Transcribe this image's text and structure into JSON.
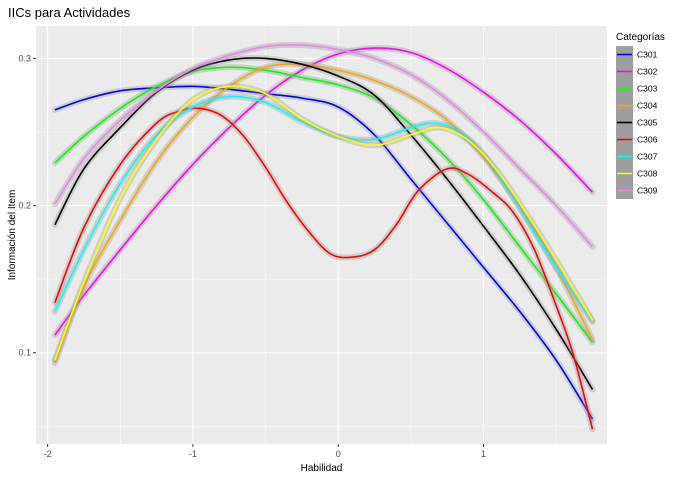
{
  "chart_data": {
    "type": "line",
    "title": "IICs para Actividades",
    "xlabel": "Habilidad",
    "ylabel": "Información del Item",
    "xlim": [
      -2.08,
      1.85
    ],
    "ylim": [
      0.038,
      0.322
    ],
    "x_ticks": [
      -2,
      -1,
      0,
      1
    ],
    "x_tick_labels": [
      "-2",
      "-1",
      "0",
      "1"
    ],
    "y_ticks": [
      0.1,
      0.2,
      0.3
    ],
    "y_tick_labels": [
      "0.1",
      "0.2",
      "0.3"
    ],
    "grid": true,
    "legend": {
      "title": "Categorías",
      "position": "right"
    },
    "series": [
      {
        "name": "C301",
        "color": "#0000FF",
        "x": [
          -1.95,
          -1.75,
          -1.5,
          -1.25,
          -1.0,
          -0.75,
          -0.5,
          -0.25,
          0.0,
          0.25,
          0.5,
          0.75,
          1.0,
          1.25,
          1.5,
          1.75
        ],
        "y": [
          0.265,
          0.272,
          0.278,
          0.28,
          0.281,
          0.279,
          0.276,
          0.273,
          0.267,
          0.248,
          0.218,
          0.188,
          0.158,
          0.128,
          0.095,
          0.055
        ]
      },
      {
        "name": "C302",
        "color": "#FF00FF",
        "x": [
          -1.95,
          -1.75,
          -1.5,
          -1.25,
          -1.0,
          -0.75,
          -0.5,
          -0.25,
          0.0,
          0.25,
          0.5,
          0.75,
          1.0,
          1.25,
          1.5,
          1.75
        ],
        "y": [
          0.112,
          0.139,
          0.17,
          0.2,
          0.228,
          0.253,
          0.275,
          0.292,
          0.303,
          0.307,
          0.304,
          0.293,
          0.277,
          0.258,
          0.235,
          0.209
        ]
      },
      {
        "name": "C303",
        "color": "#00FF00",
        "x": [
          -1.95,
          -1.75,
          -1.5,
          -1.25,
          -1.0,
          -0.75,
          -0.5,
          -0.25,
          0.0,
          0.25,
          0.5,
          0.75,
          1.0,
          1.25,
          1.5,
          1.75
        ],
        "y": [
          0.229,
          0.247,
          0.266,
          0.281,
          0.291,
          0.294,
          0.292,
          0.287,
          0.282,
          0.273,
          0.255,
          0.232,
          0.204,
          0.172,
          0.14,
          0.107
        ]
      },
      {
        "name": "C304",
        "color": "#FFA500",
        "x": [
          -1.95,
          -1.75,
          -1.5,
          -1.25,
          -1.0,
          -0.75,
          -0.5,
          -0.25,
          0.0,
          0.25,
          0.5,
          0.75,
          1.0,
          1.25,
          1.5,
          1.75
        ],
        "y": [
          0.093,
          0.145,
          0.19,
          0.23,
          0.26,
          0.281,
          0.294,
          0.296,
          0.292,
          0.285,
          0.274,
          0.258,
          0.233,
          0.199,
          0.158,
          0.109
        ]
      },
      {
        "name": "C305",
        "color": "#000000",
        "x": [
          -1.95,
          -1.75,
          -1.5,
          -1.25,
          -1.0,
          -0.75,
          -0.5,
          -0.25,
          0.0,
          0.25,
          0.5,
          0.75,
          1.0,
          1.25,
          1.5,
          1.75
        ],
        "y": [
          0.187,
          0.225,
          0.253,
          0.277,
          0.292,
          0.299,
          0.3,
          0.296,
          0.288,
          0.275,
          0.248,
          0.218,
          0.186,
          0.153,
          0.116,
          0.075
        ]
      },
      {
        "name": "C306",
        "color": "#FF0000",
        "x": [
          -1.95,
          -1.75,
          -1.5,
          -1.25,
          -1.1,
          -0.95,
          -0.8,
          -0.65,
          -0.5,
          -0.35,
          -0.2,
          -0.05,
          0.1,
          0.25,
          0.4,
          0.55,
          0.75,
          0.9,
          1.05,
          1.2,
          1.35,
          1.5,
          1.62,
          1.75
        ],
        "y": [
          0.134,
          0.185,
          0.228,
          0.256,
          0.264,
          0.266,
          0.261,
          0.247,
          0.226,
          0.202,
          0.182,
          0.167,
          0.165,
          0.17,
          0.187,
          0.21,
          0.225,
          0.221,
          0.21,
          0.196,
          0.17,
          0.132,
          0.098,
          0.048
        ]
      },
      {
        "name": "C307",
        "color": "#00FFFF",
        "x": [
          -1.95,
          -1.75,
          -1.5,
          -1.25,
          -1.0,
          -0.75,
          -0.5,
          -0.25,
          0.0,
          0.25,
          0.5,
          0.65,
          0.8,
          1.0,
          1.25,
          1.5,
          1.75
        ],
        "y": [
          0.128,
          0.17,
          0.215,
          0.248,
          0.267,
          0.274,
          0.27,
          0.257,
          0.247,
          0.245,
          0.253,
          0.256,
          0.252,
          0.235,
          0.198,
          0.158,
          0.121
        ]
      },
      {
        "name": "C308",
        "color": "#FFFF00",
        "x": [
          -1.95,
          -1.75,
          -1.5,
          -1.25,
          -1.0,
          -0.75,
          -0.5,
          -0.25,
          0.0,
          0.25,
          0.5,
          0.7,
          0.9,
          1.1,
          1.3,
          1.5,
          1.75
        ],
        "y": [
          0.095,
          0.148,
          0.205,
          0.245,
          0.272,
          0.281,
          0.276,
          0.259,
          0.247,
          0.241,
          0.248,
          0.253,
          0.244,
          0.223,
          0.194,
          0.163,
          0.122
        ]
      },
      {
        "name": "C309",
        "color": "#EE82EE",
        "x": [
          -1.95,
          -1.75,
          -1.5,
          -1.25,
          -1.0,
          -0.75,
          -0.5,
          -0.25,
          0.0,
          0.25,
          0.5,
          0.75,
          1.0,
          1.25,
          1.5,
          1.75
        ],
        "y": [
          0.201,
          0.232,
          0.258,
          0.278,
          0.293,
          0.302,
          0.308,
          0.309,
          0.306,
          0.3,
          0.289,
          0.272,
          0.25,
          0.225,
          0.2,
          0.172
        ]
      }
    ]
  }
}
